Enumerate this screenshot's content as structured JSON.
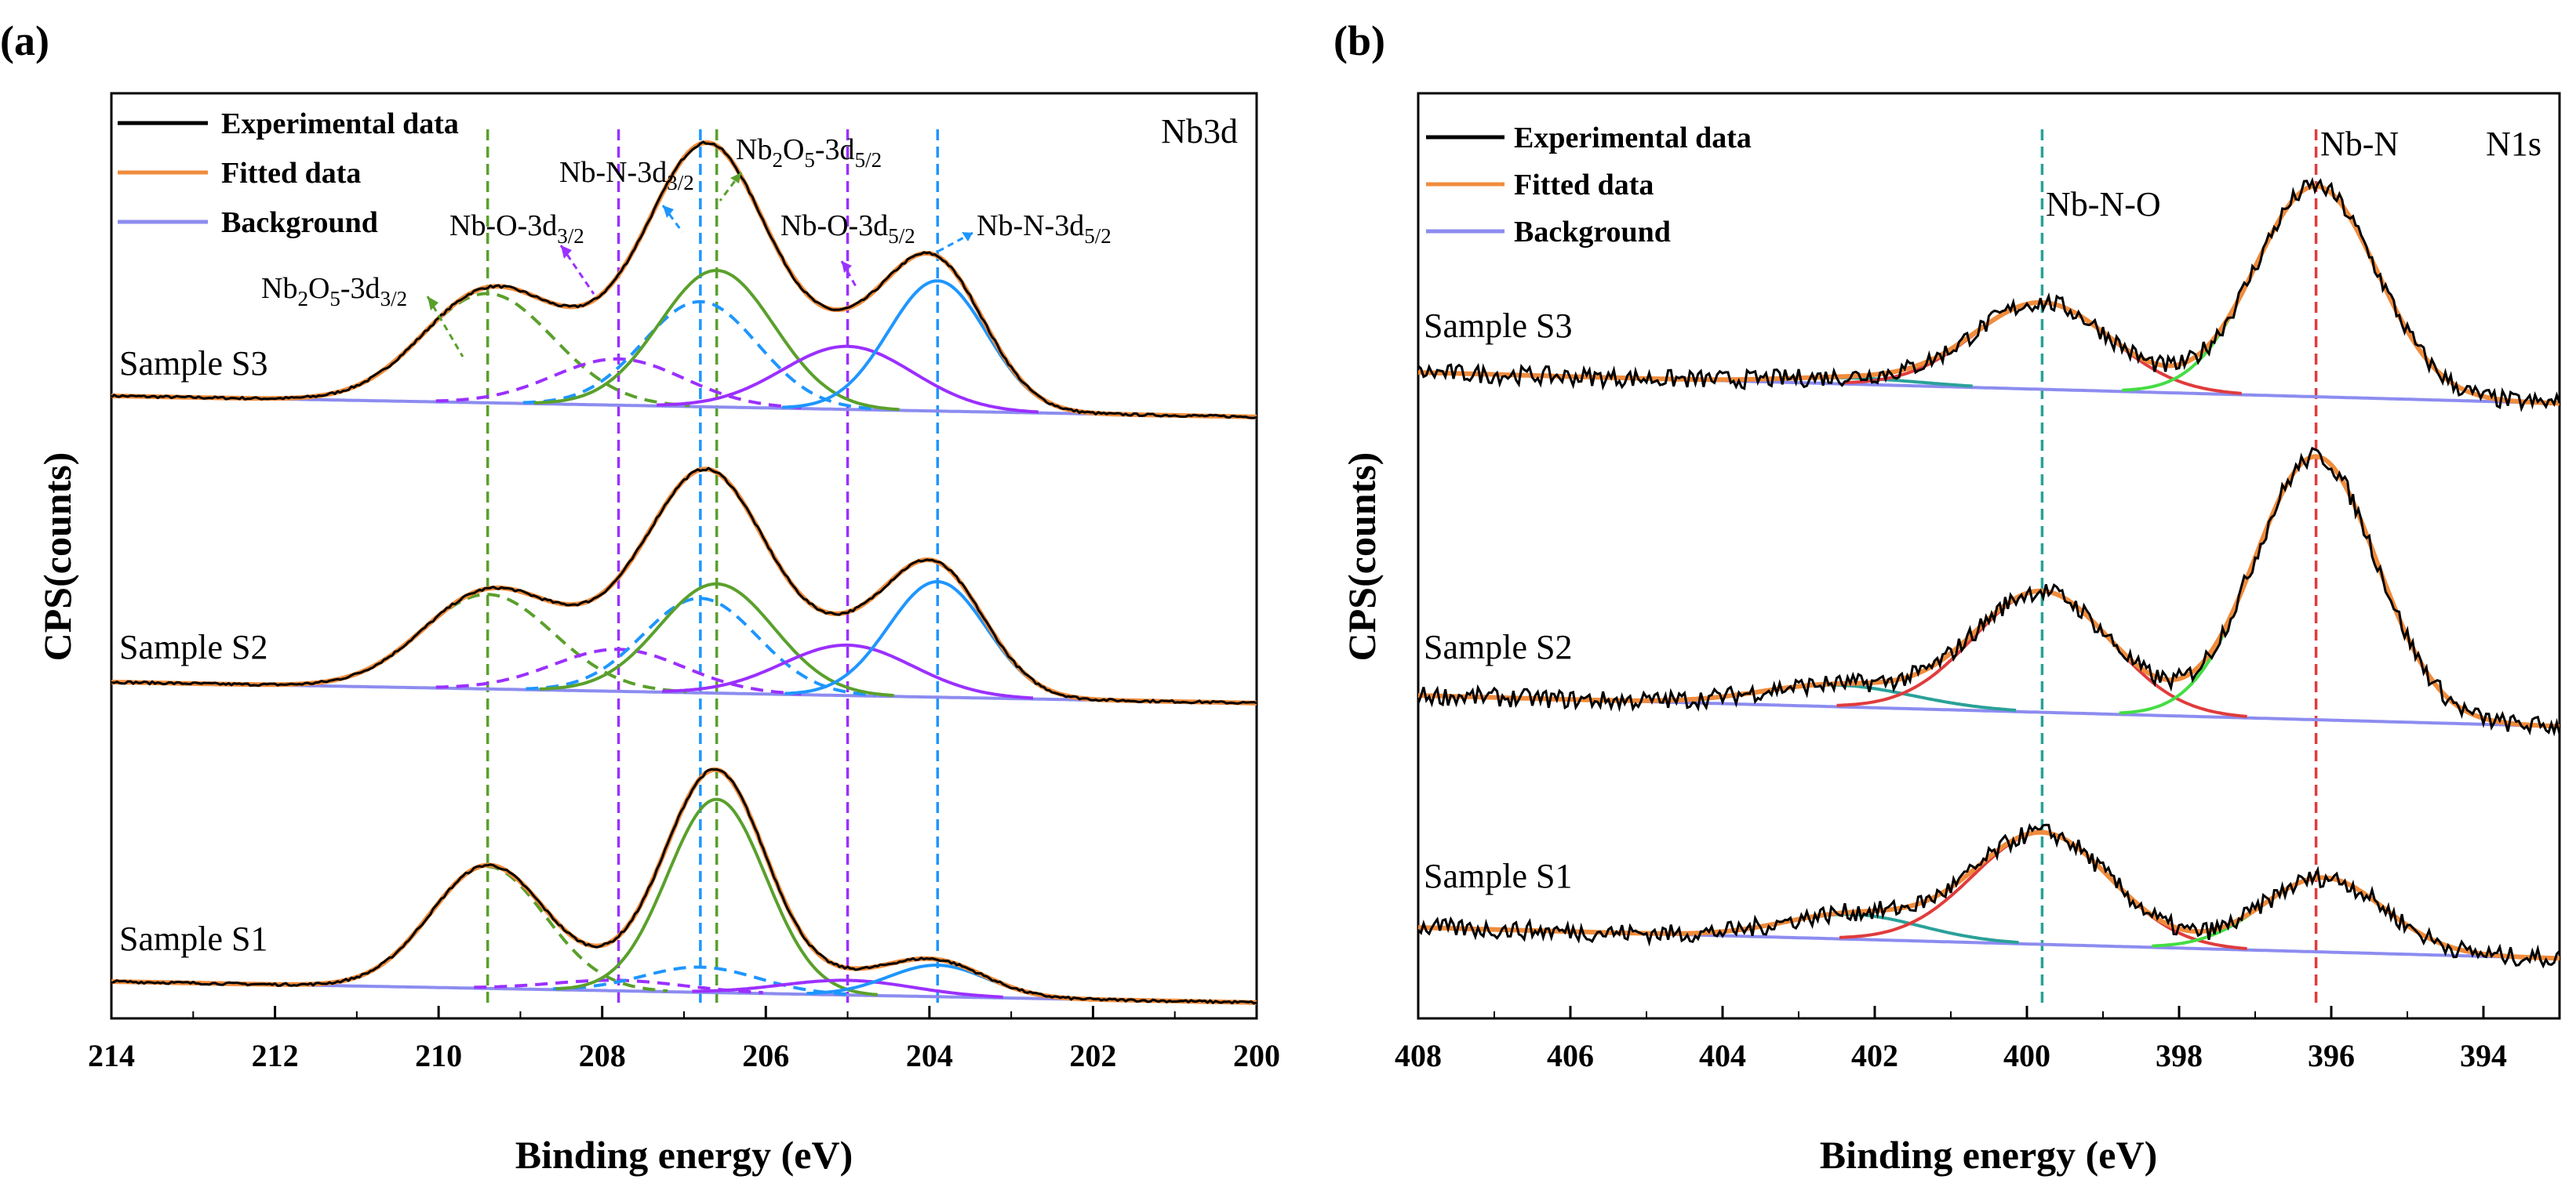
{
  "chart_data": [
    {
      "type": "line",
      "panel": "(a)",
      "region": "Nb3d",
      "xlabel": "Binding energy (eV)",
      "ylabel": "CPS(counts)",
      "xlim": [
        214,
        200
      ],
      "x_ticks": [
        214,
        212,
        210,
        208,
        206,
        204,
        202,
        200
      ],
      "x_tick_labels": [
        "214",
        "212",
        "210",
        "208",
        "206",
        "204",
        "202",
        "200"
      ],
      "y_ticks_shown": false,
      "legend": {
        "position": "top-left",
        "items": [
          {
            "name": "Experimental data",
            "color": "#000000"
          },
          {
            "name": "Fitted data",
            "color": "#f08c3c"
          },
          {
            "name": "Background",
            "color": "#8c8cf0"
          }
        ]
      },
      "components": [
        {
          "label": "Nb2O5-3d3/2",
          "center": 209.4,
          "color": "#5aa02c",
          "style": "dashed"
        },
        {
          "label": "Nb-O-3d3/2",
          "center": 207.8,
          "color": "#9b30ff",
          "style": "dashed"
        },
        {
          "label": "Nb-N-3d3/2",
          "center": 206.8,
          "color": "#1e96ff",
          "style": "dashed"
        },
        {
          "label": "Nb2O5-3d5/2",
          "center": 206.6,
          "color": "#5aa02c",
          "style": "solid"
        },
        {
          "label": "Nb-O-3d5/2",
          "center": 205.0,
          "color": "#9b30ff",
          "style": "solid"
        },
        {
          "label": "Nb-N-3d5/2",
          "center": 203.9,
          "color": "#1e96ff",
          "style": "solid"
        }
      ],
      "annotations": [
        {
          "text": "Nb2O5-3d3/2"
        },
        {
          "text": "Nb-O-3d3/2"
        },
        {
          "text": "Nb-N-3d3/2"
        },
        {
          "text": "Nb2O5-3d5/2"
        },
        {
          "text": "Nb-O-3d5/2"
        },
        {
          "text": "Nb-N-3d5/2"
        }
      ],
      "reference_lines": [
        209.4,
        207.8,
        206.8,
        206.6,
        205.0,
        203.9
      ],
      "series": [
        {
          "name": "Sample S3",
          "offset": 2.0,
          "background": {
            "start": 0.0,
            "end": -0.1
          },
          "peaks": [
            {
              "center": 209.4,
              "amplitude": 0.52,
              "width": 0.8
            },
            {
              "center": 207.8,
              "amplitude": 0.22,
              "width": 0.8
            },
            {
              "center": 206.8,
              "amplitude": 0.5,
              "width": 0.7
            },
            {
              "center": 206.6,
              "amplitude": 0.65,
              "width": 0.7
            },
            {
              "center": 205.0,
              "amplitude": 0.3,
              "width": 0.8
            },
            {
              "center": 203.9,
              "amplitude": 0.62,
              "width": 0.6
            }
          ]
        },
        {
          "name": "Sample S2",
          "offset": 1.0,
          "background": {
            "start": 0.0,
            "end": -0.1
          },
          "peaks": [
            {
              "center": 209.4,
              "amplitude": 0.45,
              "width": 0.8
            },
            {
              "center": 207.8,
              "amplitude": 0.2,
              "width": 0.8
            },
            {
              "center": 206.8,
              "amplitude": 0.45,
              "width": 0.7
            },
            {
              "center": 206.6,
              "amplitude": 0.52,
              "width": 0.7
            },
            {
              "center": 205.0,
              "amplitude": 0.24,
              "width": 0.8
            },
            {
              "center": 203.9,
              "amplitude": 0.55,
              "width": 0.6
            }
          ]
        },
        {
          "name": "Sample S1",
          "offset": 0.0,
          "background": {
            "start": 0.0,
            "end": -0.1
          },
          "peaks": [
            {
              "center": 209.4,
              "amplitude": 0.58,
              "width": 0.7
            },
            {
              "center": 207.8,
              "amplitude": 0.05,
              "width": 0.8
            },
            {
              "center": 206.8,
              "amplitude": 0.12,
              "width": 0.7
            },
            {
              "center": 206.6,
              "amplitude": 0.92,
              "width": 0.6
            },
            {
              "center": 205.0,
              "amplitude": 0.07,
              "width": 0.8
            },
            {
              "center": 203.9,
              "amplitude": 0.15,
              "width": 0.6
            }
          ]
        }
      ]
    },
    {
      "type": "line",
      "panel": "(b)",
      "region": "N1s",
      "xlabel": "Binding energy (eV)",
      "ylabel": "CPS(counts)",
      "xlim": [
        408,
        393
      ],
      "x_ticks": [
        408,
        406,
        404,
        402,
        400,
        398,
        396,
        394
      ],
      "x_tick_labels": [
        "408",
        "406",
        "404",
        "402",
        "400",
        "398",
        "396",
        "394"
      ],
      "y_ticks_shown": false,
      "legend": {
        "position": "top-left",
        "items": [
          {
            "name": "Experimental data",
            "color": "#000000"
          },
          {
            "name": "Fitted data",
            "color": "#f08c3c"
          },
          {
            "name": "Background",
            "color": "#8c8cf0"
          }
        ]
      },
      "components": [
        {
          "label": "Nb-N-O",
          "center": 399.8,
          "color": "#2aa198"
        },
        {
          "label": "Nb-N",
          "center": 396.2,
          "color": "#e03c3c"
        },
        {
          "label": "",
          "center": 402.3,
          "color": "#44dd44"
        }
      ],
      "reference_lines": [
        {
          "label": "Nb-N-O",
          "x": 399.8,
          "color": "#2aa198"
        },
        {
          "label": "Nb-N",
          "x": 396.2,
          "color": "#e03c3c"
        }
      ],
      "series": [
        {
          "name": "Sample S3",
          "offset": 2.0,
          "background": {
            "start": 0.0,
            "end": -0.1
          },
          "peaks": [
            {
              "center": 402.3,
              "amplitude": 0.02,
              "width": 0.9
            },
            {
              "center": 399.8,
              "amplitude": 0.28,
              "width": 0.9
            },
            {
              "center": 396.2,
              "amplitude": 0.68,
              "width": 0.8
            }
          ]
        },
        {
          "name": "Sample S2",
          "offset": 1.0,
          "background": {
            "start": 0.0,
            "end": -0.1
          },
          "peaks": [
            {
              "center": 402.5,
              "amplitude": 0.07,
              "width": 1.0
            },
            {
              "center": 399.8,
              "amplitude": 0.39,
              "width": 0.9
            },
            {
              "center": 396.2,
              "amplitude": 0.85,
              "width": 0.8
            }
          ]
        },
        {
          "name": "Sample S1",
          "offset": 0.0,
          "background": {
            "start": 0.0,
            "end": -0.1
          },
          "peaks": [
            {
              "center": 402.3,
              "amplitude": 0.08,
              "width": 0.9
            },
            {
              "center": 399.8,
              "amplitude": 0.36,
              "width": 0.9
            },
            {
              "center": 396.1,
              "amplitude": 0.24,
              "width": 0.8
            }
          ]
        }
      ]
    }
  ]
}
